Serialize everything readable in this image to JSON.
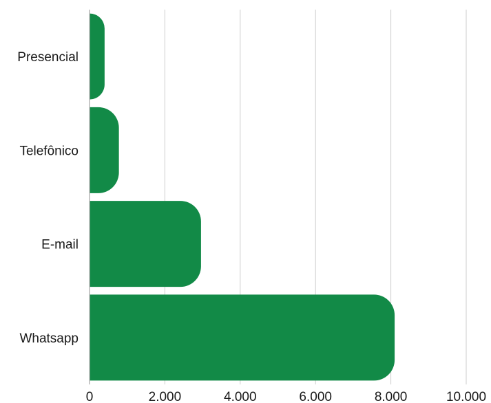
{
  "chart_data": {
    "type": "bar",
    "orientation": "horizontal",
    "categories": [
      "Presencial",
      "Telefônico",
      "E-mail",
      "Whatsapp"
    ],
    "values": [
      400,
      780,
      2960,
      8100
    ],
    "xlim": [
      0,
      10000
    ],
    "xticks": [
      0,
      2000,
      4000,
      6000,
      8000,
      10000
    ],
    "xtick_labels": [
      "0",
      "2.000",
      "4.000",
      "6.000",
      "8.000",
      "10.000"
    ],
    "grid": "vertical",
    "bar_color": "#128a47"
  }
}
